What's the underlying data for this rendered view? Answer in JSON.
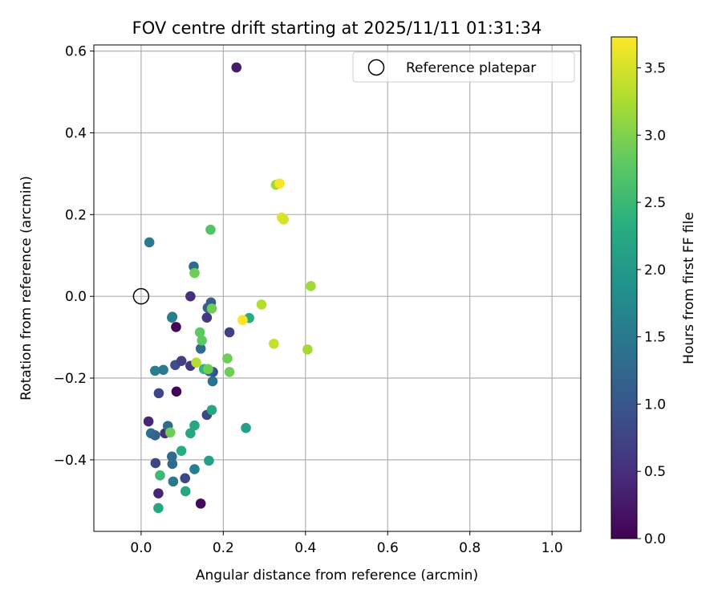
{
  "chart_data": {
    "type": "scatter",
    "title": "FOV centre drift starting at 2025/11/11 01:31:34",
    "xlabel": "Angular distance from reference (arcmin)",
    "ylabel": "Rotation from reference (arcmin)",
    "xlim": [
      -0.115,
      1.07
    ],
    "ylim": [
      -0.575,
      0.615
    ],
    "xticks": [
      0.0,
      0.2,
      0.4,
      0.6,
      0.8,
      1.0
    ],
    "xtick_labels": [
      "0.0",
      "0.2",
      "0.4",
      "0.6",
      "0.8",
      "1.0"
    ],
    "yticks": [
      -0.4,
      -0.2,
      0.0,
      0.2,
      0.4,
      0.6
    ],
    "ytick_labels": [
      "−0.4",
      "−0.2",
      "0.0",
      "0.2",
      "0.4",
      "0.6"
    ],
    "grid": true,
    "legend": {
      "position": "top-right",
      "label": "Reference platepar"
    },
    "reference_point": {
      "x": 0.0,
      "y": 0.0
    },
    "colorbar": {
      "label": "Hours from first FF file",
      "colormap": "viridis",
      "range": [
        0.0,
        3.73
      ],
      "ticks": [
        0.0,
        0.5,
        1.0,
        1.5,
        2.0,
        2.5,
        3.0,
        3.5
      ],
      "tick_labels": [
        "0.0",
        "0.5",
        "1.0",
        "1.5",
        "2.0",
        "2.5",
        "3.0",
        "3.5"
      ]
    },
    "points": [
      {
        "x": 0.232,
        "y": 0.56,
        "c": 0.3
      },
      {
        "x": 0.085,
        "y": -0.075,
        "c": 0.05
      },
      {
        "x": 0.086,
        "y": -0.233,
        "c": 0.05
      },
      {
        "x": 0.145,
        "y": -0.507,
        "c": 0.1
      },
      {
        "x": 0.042,
        "y": -0.482,
        "c": 0.4
      },
      {
        "x": 0.018,
        "y": -0.306,
        "c": 0.4
      },
      {
        "x": 0.058,
        "y": -0.335,
        "c": 0.5
      },
      {
        "x": 0.12,
        "y": 0.0,
        "c": 0.5
      },
      {
        "x": 0.107,
        "y": -0.445,
        "c": 0.8
      },
      {
        "x": 0.035,
        "y": -0.408,
        "c": 0.8
      },
      {
        "x": 0.043,
        "y": -0.237,
        "c": 0.8
      },
      {
        "x": 0.083,
        "y": -0.168,
        "c": 0.9
      },
      {
        "x": 0.098,
        "y": -0.158,
        "c": 0.7
      },
      {
        "x": 0.12,
        "y": -0.17,
        "c": 0.6
      },
      {
        "x": 0.16,
        "y": -0.052,
        "c": 0.6
      },
      {
        "x": 0.215,
        "y": -0.088,
        "c": 0.7
      },
      {
        "x": 0.16,
        "y": -0.29,
        "c": 0.8
      },
      {
        "x": 0.175,
        "y": -0.185,
        "c": 0.9
      },
      {
        "x": 0.166,
        "y": -0.183,
        "c": 1.2
      },
      {
        "x": 0.145,
        "y": -0.128,
        "c": 1.3
      },
      {
        "x": 0.162,
        "y": -0.028,
        "c": 1.2
      },
      {
        "x": 0.17,
        "y": -0.015,
        "c": 1.1
      },
      {
        "x": 0.128,
        "y": 0.073,
        "c": 1.3
      },
      {
        "x": 0.02,
        "y": 0.132,
        "c": 1.5
      },
      {
        "x": 0.076,
        "y": -0.05,
        "c": 1.5
      },
      {
        "x": 0.075,
        "y": -0.052,
        "c": 1.6
      },
      {
        "x": 0.034,
        "y": -0.182,
        "c": 1.6
      },
      {
        "x": 0.054,
        "y": -0.18,
        "c": 1.5
      },
      {
        "x": 0.174,
        "y": -0.208,
        "c": 1.4
      },
      {
        "x": 0.065,
        "y": -0.317,
        "c": 1.3
      },
      {
        "x": 0.024,
        "y": -0.335,
        "c": 1.4
      },
      {
        "x": 0.034,
        "y": -0.34,
        "c": 1.2
      },
      {
        "x": 0.075,
        "y": -0.392,
        "c": 1.3
      },
      {
        "x": 0.076,
        "y": -0.41,
        "c": 1.3
      },
      {
        "x": 0.078,
        "y": -0.453,
        "c": 1.5
      },
      {
        "x": 0.13,
        "y": -0.423,
        "c": 1.6
      },
      {
        "x": 0.165,
        "y": -0.402,
        "c": 2.1
      },
      {
        "x": 0.108,
        "y": -0.477,
        "c": 2.2
      },
      {
        "x": 0.042,
        "y": -0.518,
        "c": 2.2
      },
      {
        "x": 0.046,
        "y": -0.438,
        "c": 2.5
      },
      {
        "x": 0.098,
        "y": -0.378,
        "c": 2.3
      },
      {
        "x": 0.12,
        "y": -0.335,
        "c": 2.2
      },
      {
        "x": 0.13,
        "y": -0.316,
        "c": 2.2
      },
      {
        "x": 0.172,
        "y": -0.278,
        "c": 2.2
      },
      {
        "x": 0.255,
        "y": -0.322,
        "c": 2.1
      },
      {
        "x": 0.263,
        "y": -0.053,
        "c": 2.3
      },
      {
        "x": 0.153,
        "y": -0.178,
        "c": 2.4
      },
      {
        "x": 0.071,
        "y": -0.333,
        "c": 2.9
      },
      {
        "x": 0.169,
        "y": 0.163,
        "c": 2.7
      },
      {
        "x": 0.148,
        "y": -0.108,
        "c": 2.8
      },
      {
        "x": 0.143,
        "y": -0.088,
        "c": 2.8
      },
      {
        "x": 0.13,
        "y": 0.057,
        "c": 2.9
      },
      {
        "x": 0.172,
        "y": -0.03,
        "c": 2.9
      },
      {
        "x": 0.163,
        "y": -0.178,
        "c": 2.9
      },
      {
        "x": 0.21,
        "y": -0.152,
        "c": 2.9
      },
      {
        "x": 0.215,
        "y": -0.185,
        "c": 2.9
      },
      {
        "x": 0.134,
        "y": -0.162,
        "c": 3.3
      },
      {
        "x": 0.328,
        "y": 0.273,
        "c": 3.2
      },
      {
        "x": 0.413,
        "y": 0.025,
        "c": 3.2
      },
      {
        "x": 0.405,
        "y": -0.13,
        "c": 3.2
      },
      {
        "x": 0.293,
        "y": -0.02,
        "c": 3.3
      },
      {
        "x": 0.323,
        "y": -0.116,
        "c": 3.4
      },
      {
        "x": 0.337,
        "y": 0.276,
        "c": 3.7
      },
      {
        "x": 0.342,
        "y": 0.193,
        "c": 3.6
      },
      {
        "x": 0.347,
        "y": 0.188,
        "c": 3.5
      },
      {
        "x": 0.247,
        "y": -0.058,
        "c": 3.7
      }
    ]
  }
}
